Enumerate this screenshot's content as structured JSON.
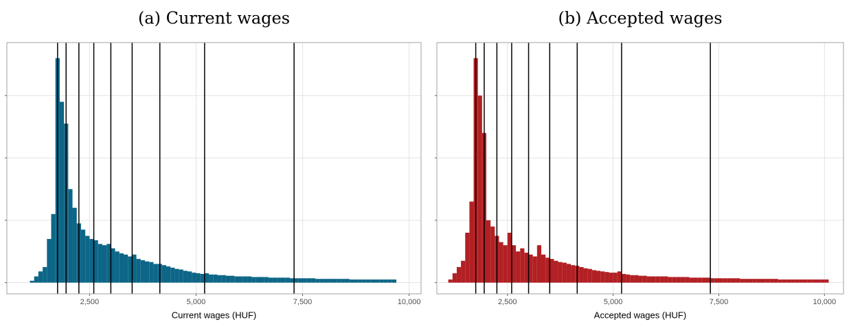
{
  "chart_data": [
    {
      "type": "histogram",
      "title": "(a) Current wages",
      "x_label": "Current wages (HUF)",
      "color": "#0d6687",
      "bins": [
        1100,
        1200,
        1300,
        1400,
        1500,
        1600,
        1700,
        1800,
        1900,
        2000,
        2100,
        2200,
        2300,
        2400,
        2500,
        2600,
        2700,
        2800,
        2900,
        3000,
        3100,
        3200,
        3300,
        3400,
        3500,
        3600,
        3700,
        3800,
        3900,
        4000,
        4100,
        4200,
        4300,
        4400,
        4500,
        4600,
        4700,
        4800,
        4900,
        5000,
        5100,
        5200,
        5300,
        5400,
        5500,
        5600,
        5700,
        5800,
        5900,
        6000,
        6100,
        6200,
        6300,
        6400,
        6500,
        6600,
        6700,
        6800,
        6900,
        7000,
        7100,
        7200,
        7300,
        7400,
        7500,
        7600,
        7700,
        7800,
        7900,
        8000,
        8100,
        8200,
        8300,
        8400,
        8500,
        8600,
        8700,
        8800,
        8900,
        9000,
        9100,
        9200,
        9300,
        9400,
        9500,
        9600,
        9700
      ],
      "counts": [
        0.03,
        0.1,
        0.18,
        0.25,
        0.7,
        1.1,
        3.6,
        2.9,
        2.55,
        1.5,
        1.2,
        0.95,
        0.85,
        0.75,
        0.7,
        0.68,
        0.62,
        0.6,
        0.62,
        0.55,
        0.5,
        0.47,
        0.45,
        0.42,
        0.45,
        0.38,
        0.36,
        0.34,
        0.33,
        0.3,
        0.3,
        0.28,
        0.26,
        0.24,
        0.22,
        0.21,
        0.19,
        0.18,
        0.16,
        0.15,
        0.14,
        0.15,
        0.13,
        0.13,
        0.12,
        0.12,
        0.11,
        0.11,
        0.1,
        0.1,
        0.1,
        0.1,
        0.09,
        0.09,
        0.09,
        0.09,
        0.08,
        0.08,
        0.08,
        0.08,
        0.08,
        0.07,
        0.07,
        0.07,
        0.07,
        0.07,
        0.07,
        0.06,
        0.06,
        0.06,
        0.06,
        0.06,
        0.06,
        0.06,
        0.06,
        0.05,
        0.05,
        0.05,
        0.05,
        0.05,
        0.05,
        0.05,
        0.05,
        0.05,
        0.05,
        0.05
      ],
      "xlim": [
        560,
        10280
      ],
      "xticks": [
        {
          "value": 2500,
          "label": "2,500"
        },
        {
          "value": 5000,
          "label": "5,000"
        },
        {
          "value": 7500,
          "label": "7,500"
        },
        {
          "value": 10000,
          "label": "10,000"
        }
      ],
      "ylim": [
        -0.18,
        3.85
      ],
      "yticks": [
        0,
        1,
        2,
        3
      ],
      "grid": true,
      "vlines": [
        1750,
        1950,
        2250,
        2600,
        3000,
        3500,
        4150,
        5200,
        7300
      ]
    },
    {
      "type": "histogram",
      "title": "(b) Accepted wages",
      "x_label": "Accepted wages (HUF)",
      "color": "#b22024",
      "bins": [
        1100,
        1200,
        1300,
        1400,
        1500,
        1600,
        1700,
        1800,
        1900,
        2000,
        2100,
        2200,
        2300,
        2400,
        2500,
        2600,
        2700,
        2800,
        2900,
        3000,
        3100,
        3200,
        3300,
        3400,
        3500,
        3600,
        3700,
        3800,
        3900,
        4000,
        4100,
        4200,
        4300,
        4400,
        4500,
        4600,
        4700,
        4800,
        4900,
        5000,
        5100,
        5200,
        5300,
        5400,
        5500,
        5600,
        5700,
        5800,
        5900,
        6000,
        6100,
        6200,
        6300,
        6400,
        6500,
        6600,
        6700,
        6800,
        6900,
        7000,
        7100,
        7200,
        7300,
        7400,
        7500,
        7600,
        7700,
        7800,
        7900,
        8000,
        8100,
        8200,
        8300,
        8400,
        8500,
        8600,
        8700,
        8800,
        8900,
        9000,
        9100,
        9200,
        9300,
        9400,
        9500,
        9600,
        9700,
        9800,
        9900,
        10000,
        10100
      ],
      "counts": [
        0.05,
        0.15,
        0.25,
        0.35,
        0.8,
        1.3,
        3.6,
        3.0,
        2.4,
        1.0,
        0.9,
        0.75,
        0.65,
        0.6,
        0.8,
        0.6,
        0.5,
        0.55,
        0.48,
        0.45,
        0.42,
        0.6,
        0.45,
        0.4,
        0.38,
        0.35,
        0.33,
        0.32,
        0.3,
        0.28,
        0.27,
        0.25,
        0.23,
        0.22,
        0.2,
        0.19,
        0.18,
        0.17,
        0.16,
        0.16,
        0.18,
        0.14,
        0.13,
        0.12,
        0.12,
        0.11,
        0.11,
        0.1,
        0.1,
        0.1,
        0.1,
        0.1,
        0.09,
        0.09,
        0.09,
        0.09,
        0.09,
        0.08,
        0.08,
        0.08,
        0.08,
        0.08,
        0.07,
        0.07,
        0.07,
        0.07,
        0.07,
        0.07,
        0.07,
        0.06,
        0.06,
        0.06,
        0.06,
        0.06,
        0.06,
        0.06,
        0.06,
        0.06,
        0.05,
        0.05,
        0.05,
        0.05,
        0.05,
        0.05,
        0.05,
        0.05,
        0.05,
        0.05,
        0.05,
        0.05
      ],
      "xlim": [
        830,
        10450
      ],
      "xticks": [
        {
          "value": 2500,
          "label": "2,500"
        },
        {
          "value": 5000,
          "label": "5,000"
        },
        {
          "value": 7500,
          "label": "7,500"
        },
        {
          "value": 10000,
          "label": "10,000"
        }
      ],
      "ylim": [
        -0.18,
        3.85
      ],
      "yticks": [
        0,
        1,
        2,
        3
      ],
      "grid": true,
      "vlines": [
        1750,
        1950,
        2250,
        2600,
        3000,
        3500,
        4150,
        5200,
        7300
      ]
    }
  ]
}
